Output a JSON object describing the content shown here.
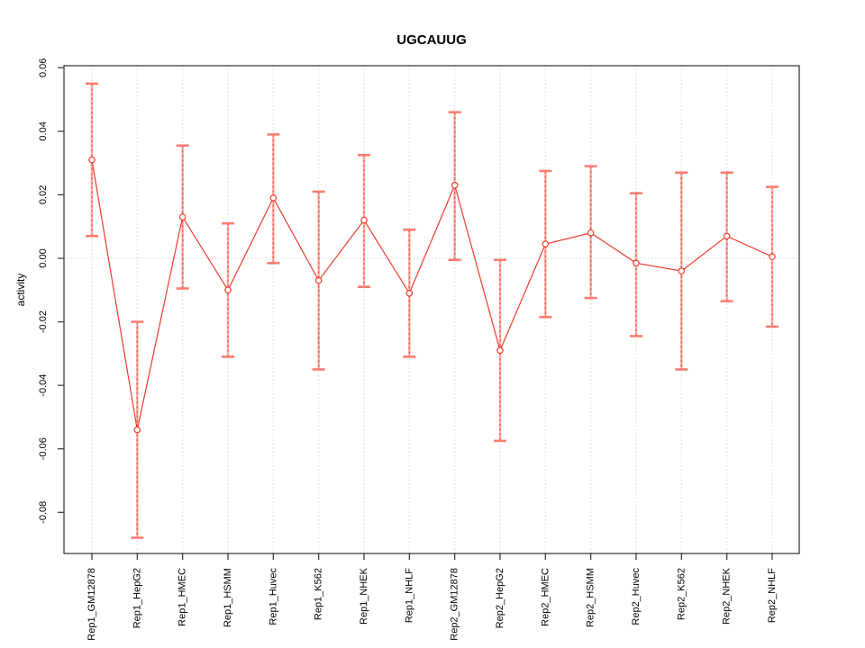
{
  "chart_data": {
    "type": "line",
    "title": "UGCAUUG",
    "xlabel": "",
    "ylabel": "activity",
    "categories": [
      "Rep1_GM12878",
      "Rep1_HepG2",
      "Rep1_HMEC",
      "Rep1_HSMM",
      "Rep1_Huvec",
      "Rep1_K562",
      "Rep1_NHEK",
      "Rep1_NHLF",
      "Rep2_GM12878",
      "Rep2_HepG2",
      "Rep2_HMEC",
      "Rep2_HSMM",
      "Rep2_Huvec",
      "Rep2_K562",
      "Rep2_NHEK",
      "Rep2_NHLF"
    ],
    "series": [
      {
        "name": "activity",
        "values": [
          0.031,
          -0.054,
          0.013,
          -0.01,
          0.019,
          -0.007,
          0.012,
          -0.011,
          0.023,
          -0.029,
          0.0045,
          0.008,
          -0.0015,
          -0.004,
          0.007,
          0.0005
        ],
        "error_upper": [
          0.055,
          -0.02,
          0.0355,
          0.011,
          0.039,
          0.021,
          0.0325,
          0.009,
          0.046,
          -0.0005,
          0.0275,
          0.029,
          0.0205,
          0.027,
          0.027,
          0.0225
        ],
        "error_lower": [
          0.007,
          -0.088,
          -0.0095,
          -0.031,
          -0.0015,
          -0.035,
          -0.009,
          -0.031,
          -0.0005,
          -0.0575,
          -0.0185,
          -0.0125,
          -0.0245,
          -0.035,
          -0.0135,
          -0.0215
        ]
      }
    ],
    "y_ticks": [
      0.06,
      0.04,
      0.02,
      0.0,
      -0.02,
      -0.04,
      -0.06,
      -0.08
    ],
    "ylim": [
      -0.093,
      0.061
    ],
    "grid": {
      "vertical_gridlines": true,
      "zero_line": true,
      "style": "dotted"
    },
    "legend_position": "none",
    "marker": "open-circle",
    "x_label_rotation": 90,
    "y_label_rotation": 90,
    "colors": {
      "line": "#ee3b2e",
      "point_stroke": "#ee3b2e",
      "point_fill": "#ffffff",
      "error_bar": "#ffb2aa",
      "error_cap": "#fa7d70",
      "grid": "#d6d6d6",
      "axis_box": "#3f3f3f",
      "text": "#000000",
      "background": "#ffffff"
    }
  }
}
